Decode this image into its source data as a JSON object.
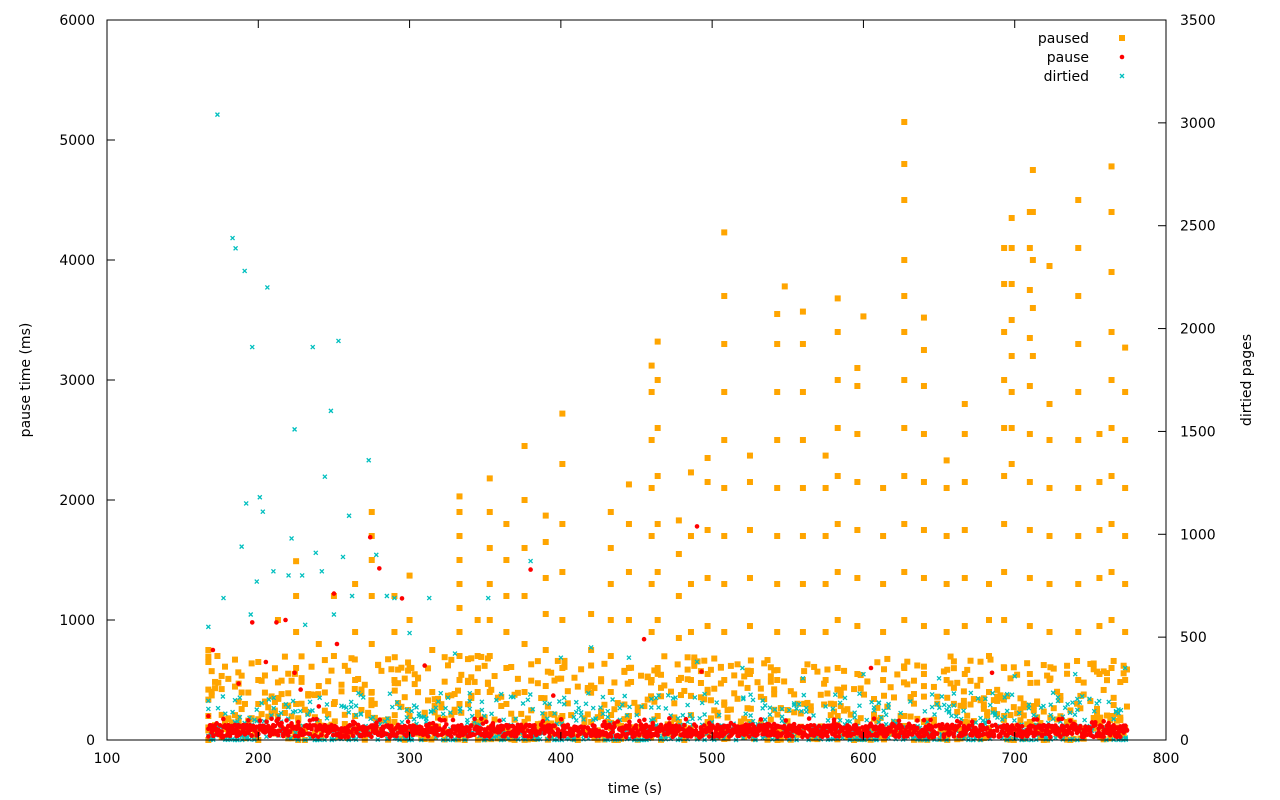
{
  "chart_data": {
    "type": "scatter",
    "title": "",
    "xlabel": "time (s)",
    "ylabel": "pause time (ms)",
    "y2label": "dirtied pages",
    "xlim": [
      100,
      800
    ],
    "ylim": [
      0,
      6000
    ],
    "y2lim": [
      0,
      3500
    ],
    "x_ticks": [
      100,
      200,
      300,
      400,
      500,
      600,
      700,
      800
    ],
    "y_ticks": [
      0,
      1000,
      2000,
      3000,
      4000,
      5000,
      6000
    ],
    "y2_ticks": [
      0,
      500,
      1000,
      1500,
      2000,
      2500,
      3000,
      3500
    ],
    "grid": false,
    "legend_position": "top-right",
    "colors": {
      "paused": "#FFA500",
      "pause": "#FF0000",
      "dirtied": "#00BFBF"
    },
    "series": [
      {
        "name": "paused",
        "axis": "left",
        "marker": "square",
        "color": "#FFA500",
        "columns": [
          {
            "x": 167,
            "y": [
              0,
              80,
              200,
              420,
              650,
              750
            ]
          },
          {
            "x": 173,
            "y": [
              700
            ]
          },
          {
            "x": 187,
            "y": [
              50,
              150,
              320,
              470
            ]
          },
          {
            "x": 200,
            "y": [
              100,
              300,
              500,
              650
            ]
          },
          {
            "x": 213,
            "y": [
              200,
              480,
              1000
            ]
          },
          {
            "x": 225,
            "y": [
              100,
              300,
              600,
              900,
              1200,
              1490
            ]
          },
          {
            "x": 240,
            "y": [
              150,
              450,
              800
            ]
          },
          {
            "x": 250,
            "y": [
              300,
              700,
              1200
            ]
          },
          {
            "x": 264,
            "y": [
              200,
              500,
              900,
              1300
            ]
          },
          {
            "x": 275,
            "y": [
              100,
              400,
              800,
              1200,
              1500,
              1700,
              1900
            ]
          },
          {
            "x": 290,
            "y": [
              150,
              500,
              900,
              1200
            ]
          },
          {
            "x": 300,
            "y": [
              200,
              600,
              1000,
              1370
            ]
          },
          {
            "x": 315,
            "y": [
              100,
              400,
              750
            ]
          },
          {
            "x": 333,
            "y": [
              100,
              300,
              500,
              700,
              900,
              1100,
              1300,
              1500,
              1700,
              1900,
              2030
            ]
          },
          {
            "x": 345,
            "y": [
              150,
              400,
              700,
              1000
            ]
          },
          {
            "x": 353,
            "y": [
              100,
              400,
              700,
              1000,
              1300,
              1600,
              1900,
              2180
            ]
          },
          {
            "x": 364,
            "y": [
              100,
              300,
              600,
              900,
              1200,
              1500,
              1800
            ]
          },
          {
            "x": 376,
            "y": [
              100,
              400,
              800,
              1200,
              1600,
              2000,
              2450
            ]
          },
          {
            "x": 390,
            "y": [
              150,
              450,
              750,
              1050,
              1350,
              1650,
              1870
            ]
          },
          {
            "x": 401,
            "y": [
              200,
              600,
              1000,
              1400,
              1800,
              2300,
              2720
            ]
          },
          {
            "x": 420,
            "y": [
              150,
              450,
              750,
              1050
            ]
          },
          {
            "x": 433,
            "y": [
              100,
              400,
              700,
              1000,
              1300,
              1600,
              1900
            ]
          },
          {
            "x": 445,
            "y": [
              200,
              600,
              1000,
              1400,
              1800,
              2130
            ]
          },
          {
            "x": 460,
            "y": [
              100,
              500,
              900,
              1300,
              1700,
              2100,
              2500,
              2900,
              3120
            ]
          },
          {
            "x": 464,
            "y": [
              200,
              600,
              1000,
              1400,
              1800,
              2200,
              2600,
              3000,
              3320
            ]
          },
          {
            "x": 478,
            "y": [
              150,
              500,
              850,
              1200,
              1550,
              1830
            ]
          },
          {
            "x": 486,
            "y": [
              100,
              500,
              900,
              1300,
              1700,
              2230
            ]
          },
          {
            "x": 497,
            "y": [
              150,
              550,
              950,
              1350,
              1750,
              2150,
              2350
            ]
          },
          {
            "x": 508,
            "y": [
              100,
              500,
              900,
              1300,
              1700,
              2100,
              2500,
              2900,
              3300,
              3700,
              4230
            ]
          },
          {
            "x": 525,
            "y": [
              150,
              550,
              950,
              1350,
              1750,
              2150,
              2370
            ]
          },
          {
            "x": 543,
            "y": [
              100,
              500,
              900,
              1300,
              1700,
              2100,
              2500,
              2900,
              3300,
              3550
            ]
          },
          {
            "x": 548,
            "y": [
              3780
            ]
          },
          {
            "x": 560,
            "y": [
              100,
              500,
              900,
              1300,
              1700,
              2100,
              2500,
              2900,
              3300,
              3570
            ]
          },
          {
            "x": 575,
            "y": [
              100,
              500,
              900,
              1300,
              1700,
              2100,
              2370
            ]
          },
          {
            "x": 583,
            "y": [
              200,
              600,
              1000,
              1400,
              1800,
              2200,
              2600,
              3000,
              3400,
              3680
            ]
          },
          {
            "x": 596,
            "y": [
              150,
              550,
              950,
              1350,
              1750,
              2150,
              2550,
              2950,
              3100
            ]
          },
          {
            "x": 600,
            "y": [
              3530
            ]
          },
          {
            "x": 613,
            "y": [
              100,
              500,
              900,
              1300,
              1700,
              2100
            ]
          },
          {
            "x": 627,
            "y": [
              200,
              600,
              1000,
              1400,
              1800,
              2200,
              2600,
              3000,
              3400,
              3700,
              4000,
              4500,
              4800,
              5150
            ]
          },
          {
            "x": 640,
            "y": [
              150,
              550,
              950,
              1350,
              1750,
              2150,
              2550,
              2950,
              3250,
              3520
            ]
          },
          {
            "x": 655,
            "y": [
              100,
              500,
              900,
              1300,
              1700,
              2100,
              2330
            ]
          },
          {
            "x": 667,
            "y": [
              150,
              550,
              950,
              1350,
              1750,
              2150,
              2550,
              2800
            ]
          },
          {
            "x": 683,
            "y": [
              100,
              400,
              700,
              1000,
              1300
            ]
          },
          {
            "x": 693,
            "y": [
              200,
              600,
              1000,
              1400,
              1800,
              2200,
              2600,
              3000,
              3400,
              3800,
              4100
            ]
          },
          {
            "x": 698,
            "y": [
              2300,
              2600,
              2900,
              3200,
              3500,
              3800,
              4100,
              4350
            ]
          },
          {
            "x": 710,
            "y": [
              150,
              550,
              950,
              1350,
              1750,
              2150,
              2550,
              2950,
              3350,
              3750,
              4100,
              4400
            ]
          },
          {
            "x": 712,
            "y": [
              3200,
              3600,
              4000,
              4400,
              4750
            ]
          },
          {
            "x": 723,
            "y": [
              100,
              500,
              900,
              1300,
              1700,
              2100,
              2500,
              2800,
              3950
            ]
          },
          {
            "x": 742,
            "y": [
              100,
              500,
              900,
              1300,
              1700,
              2100,
              2500,
              2900,
              3300,
              3700,
              4100,
              4500
            ]
          },
          {
            "x": 756,
            "y": [
              150,
              550,
              950,
              1350,
              1750,
              2150,
              2550
            ]
          },
          {
            "x": 764,
            "y": [
              200,
              600,
              1000,
              1400,
              1800,
              2200,
              2600,
              3000,
              3400,
              3900,
              4400,
              4780
            ]
          },
          {
            "x": 773,
            "y": [
              100,
              500,
              900,
              1300,
              1700,
              2100,
              2500,
              2900,
              3270
            ]
          }
        ]
      },
      {
        "name": "pause",
        "axis": "left",
        "marker": "dot",
        "color": "#FF0000",
        "band": {
          "x_start": 167,
          "x_end": 775,
          "y_low": 0,
          "y_high": 180
        },
        "highlights": [
          {
            "x": 167,
            "y": 200
          },
          {
            "x": 170,
            "y": 750
          },
          {
            "x": 187,
            "y": 470
          },
          {
            "x": 196,
            "y": 980
          },
          {
            "x": 205,
            "y": 650
          },
          {
            "x": 212,
            "y": 980
          },
          {
            "x": 218,
            "y": 1000
          },
          {
            "x": 224,
            "y": 560
          },
          {
            "x": 228,
            "y": 420
          },
          {
            "x": 240,
            "y": 280
          },
          {
            "x": 250,
            "y": 1220
          },
          {
            "x": 252,
            "y": 800
          },
          {
            "x": 274,
            "y": 1690
          },
          {
            "x": 280,
            "y": 1430
          },
          {
            "x": 295,
            "y": 1180
          },
          {
            "x": 310,
            "y": 620
          },
          {
            "x": 380,
            "y": 1420
          },
          {
            "x": 395,
            "y": 370
          },
          {
            "x": 455,
            "y": 840
          },
          {
            "x": 490,
            "y": 1780
          },
          {
            "x": 493,
            "y": 570
          },
          {
            "x": 605,
            "y": 600
          },
          {
            "x": 685,
            "y": 560
          }
        ]
      },
      {
        "name": "dirtied",
        "axis": "right",
        "marker": "cross",
        "color": "#00BFBF",
        "band": {
          "x_start": 167,
          "x_end": 775,
          "y_low": 0,
          "y_high": 230
        },
        "highlights": [
          {
            "x": 167,
            "y": 550
          },
          {
            "x": 173,
            "y": 3040
          },
          {
            "x": 177,
            "y": 690
          },
          {
            "x": 183,
            "y": 2440
          },
          {
            "x": 185,
            "y": 2390
          },
          {
            "x": 189,
            "y": 940
          },
          {
            "x": 191,
            "y": 2280
          },
          {
            "x": 192,
            "y": 1150
          },
          {
            "x": 195,
            "y": 610
          },
          {
            "x": 196,
            "y": 1910
          },
          {
            "x": 199,
            "y": 770
          },
          {
            "x": 201,
            "y": 1180
          },
          {
            "x": 203,
            "y": 1110
          },
          {
            "x": 206,
            "y": 2200
          },
          {
            "x": 210,
            "y": 820
          },
          {
            "x": 220,
            "y": 800
          },
          {
            "x": 222,
            "y": 980
          },
          {
            "x": 224,
            "y": 1510
          },
          {
            "x": 229,
            "y": 800
          },
          {
            "x": 231,
            "y": 560
          },
          {
            "x": 236,
            "y": 1910
          },
          {
            "x": 238,
            "y": 910
          },
          {
            "x": 242,
            "y": 820
          },
          {
            "x": 244,
            "y": 1280
          },
          {
            "x": 248,
            "y": 1600
          },
          {
            "x": 250,
            "y": 610
          },
          {
            "x": 253,
            "y": 1940
          },
          {
            "x": 256,
            "y": 890
          },
          {
            "x": 260,
            "y": 1090
          },
          {
            "x": 262,
            "y": 700
          },
          {
            "x": 273,
            "y": 1360
          },
          {
            "x": 278,
            "y": 900
          },
          {
            "x": 285,
            "y": 700
          },
          {
            "x": 290,
            "y": 690
          },
          {
            "x": 300,
            "y": 520
          },
          {
            "x": 313,
            "y": 690
          },
          {
            "x": 330,
            "y": 420
          },
          {
            "x": 352,
            "y": 690
          },
          {
            "x": 380,
            "y": 870
          },
          {
            "x": 400,
            "y": 400
          },
          {
            "x": 420,
            "y": 450
          },
          {
            "x": 445,
            "y": 400
          },
          {
            "x": 490,
            "y": 380
          },
          {
            "x": 520,
            "y": 350
          },
          {
            "x": 560,
            "y": 300
          },
          {
            "x": 600,
            "y": 320
          },
          {
            "x": 650,
            "y": 300
          },
          {
            "x": 700,
            "y": 310
          },
          {
            "x": 740,
            "y": 320
          },
          {
            "x": 773,
            "y": 350
          }
        ]
      }
    ]
  }
}
